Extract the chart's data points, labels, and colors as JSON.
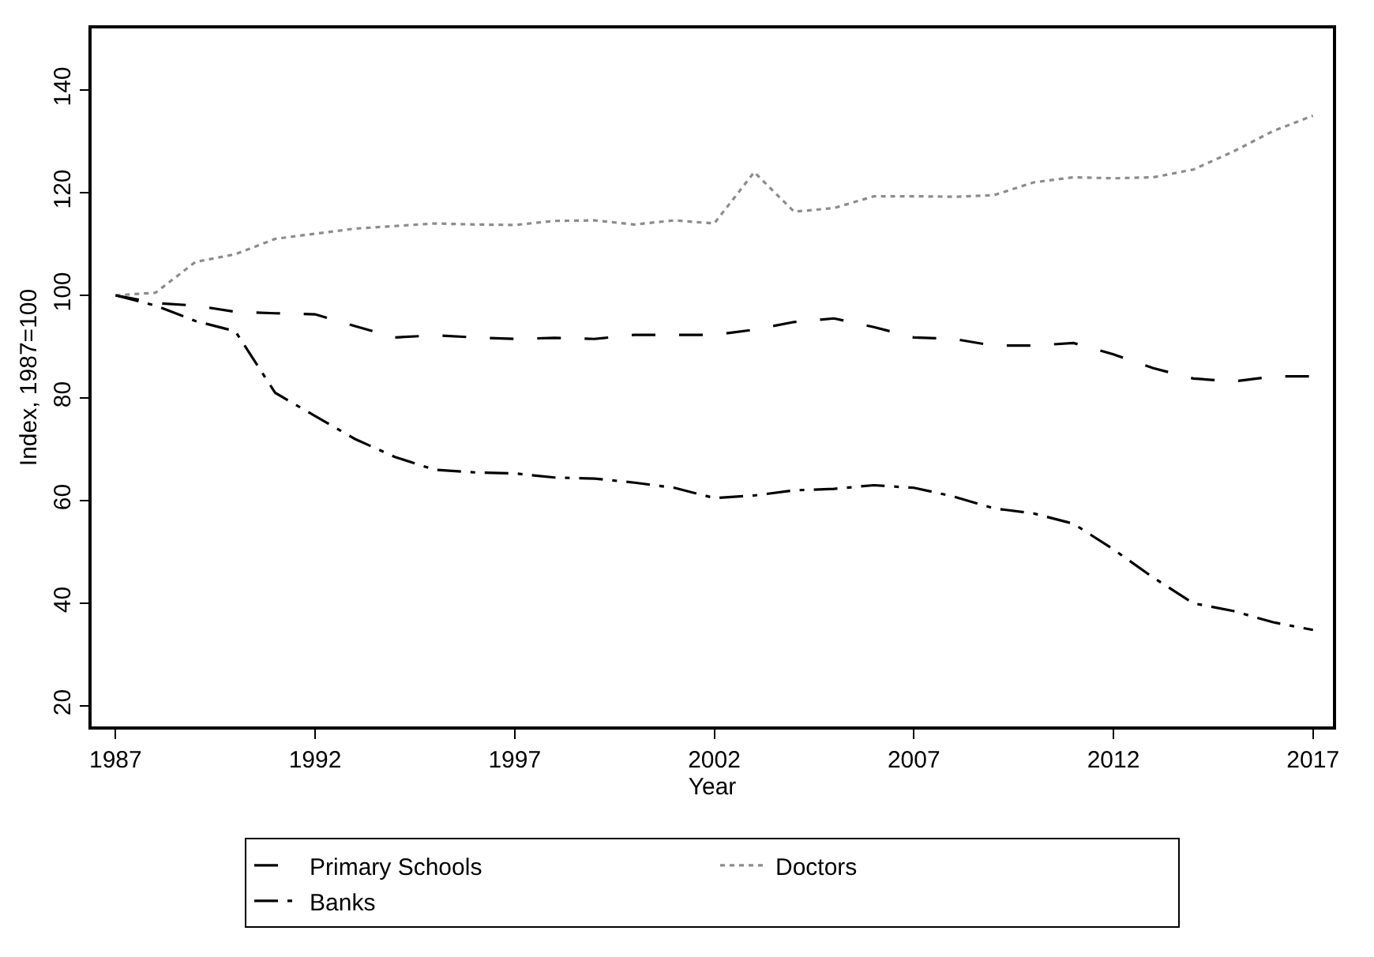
{
  "chart_data": {
    "type": "line",
    "xlabel": "Year",
    "ylabel": "Index, 1987=100",
    "x": [
      1987,
      1988,
      1989,
      1990,
      1991,
      1992,
      1993,
      1994,
      1995,
      1996,
      1997,
      1998,
      1999,
      2000,
      2001,
      2002,
      2003,
      2004,
      2005,
      2006,
      2007,
      2008,
      2009,
      2010,
      2011,
      2012,
      2013,
      2014,
      2015,
      2016,
      2017
    ],
    "series": [
      {
        "name": "Primary Schools",
        "color": "#000000",
        "line_style": "dashed",
        "values": [
          100,
          98.5,
          98,
          96.8,
          96.5,
          96.3,
          94,
          91.8,
          92.2,
          91.8,
          91.5,
          91.7,
          91.5,
          92.3,
          92.3,
          92.3,
          93.3,
          94.8,
          95.5,
          93.8,
          91.8,
          91.5,
          90.2,
          90.2,
          90.7,
          88.5,
          85.8,
          83.8,
          83.2,
          84.2,
          84.2
        ]
      },
      {
        "name": "Doctors",
        "color": "#8c8c8c",
        "line_style": "dotted",
        "values": [
          100,
          100.5,
          106.5,
          108,
          111,
          112,
          113,
          113.5,
          114,
          113.8,
          113.7,
          114.5,
          114.6,
          113.8,
          114.6,
          114,
          124,
          116.3,
          117,
          119.3,
          119.3,
          119.2,
          119.5,
          122,
          123,
          122.8,
          123,
          124.5,
          128,
          132,
          135
        ]
      },
      {
        "name": "Banks",
        "color": "#000000",
        "line_style": "dashdot",
        "values": [
          100,
          98,
          95,
          93,
          81,
          76.5,
          72,
          68.5,
          66,
          65.5,
          65.3,
          64.5,
          64.3,
          63.5,
          62.5,
          60.5,
          61,
          62,
          62.3,
          63,
          62.5,
          60.8,
          58.5,
          57.5,
          55.5,
          50.5,
          45,
          40,
          38.5,
          36.3,
          34.8
        ]
      }
    ],
    "xlim": [
      1986.4,
      2017.5
    ],
    "xticks": [
      1987,
      1992,
      1997,
      2002,
      2007,
      2012,
      2017
    ],
    "ylim": [
      16,
      152
    ],
    "yticks": [
      20,
      40,
      60,
      80,
      100,
      120,
      140
    ],
    "legend": "bottom",
    "marker": "none"
  }
}
